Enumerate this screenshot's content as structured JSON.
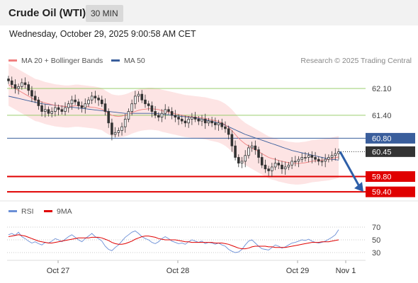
{
  "header": {
    "title": "Crude Oil (WTI)",
    "timeframe": "30 MIN",
    "datetime": "Wednesday, October 29, 2025 9:00:58 AM CET"
  },
  "legend": {
    "bollinger_label": "MA 20 + Bollinger Bands",
    "ma50_label": "MA 50",
    "credit": "Research © 2025 Trading Central"
  },
  "rsi_legend": {
    "rsi_label": "RSI",
    "ma_label": "9MA"
  },
  "colors": {
    "bollinger": "#f08080",
    "band_fill": "#fde4e4",
    "ma50": "#3a5e9c",
    "candle": "#333333",
    "green_level": "#8cc85a",
    "blue_level": "#3a5e9c",
    "red_level": "#e00000",
    "current": "#333333",
    "arrow": "#2e5fa8",
    "rsi": "#6b8fd6",
    "rsi_ma": "#e00000"
  },
  "chart_data": {
    "type": "candlestick",
    "x_ticks": [
      "Oct 27",
      "Oct 28",
      "Oct 29",
      "Nov 1"
    ],
    "y_range": [
      59.2,
      62.6
    ],
    "levels": [
      {
        "value": 62.1,
        "label": "62.10",
        "kind": "resistance"
      },
      {
        "value": 61.4,
        "label": "61.40",
        "kind": "resistance"
      },
      {
        "value": 60.8,
        "label": "60.80",
        "kind": "pivot"
      },
      {
        "value": 59.8,
        "label": "59.80",
        "kind": "support"
      },
      {
        "value": 59.4,
        "label": "59.40",
        "kind": "support"
      }
    ],
    "current_price": {
      "value": 60.45,
      "label": "60.45"
    },
    "forecast_target": 59.4,
    "close": [
      62.3,
      62.2,
      62.1,
      62.15,
      62.25,
      62.2,
      62.05,
      61.9,
      61.8,
      61.65,
      61.5,
      61.55,
      61.45,
      61.5,
      61.6,
      61.55,
      61.5,
      61.6,
      61.7,
      61.8,
      61.75,
      61.65,
      61.6,
      61.7,
      61.8,
      61.9,
      61.85,
      61.8,
      61.7,
      61.5,
      61.2,
      60.9,
      60.95,
      61.0,
      61.1,
      61.3,
      61.5,
      61.7,
      61.9,
      61.95,
      61.8,
      61.7,
      61.65,
      61.5,
      61.4,
      61.35,
      61.45,
      61.55,
      61.5,
      61.4,
      61.35,
      61.3,
      61.25,
      61.2,
      61.3,
      61.35,
      61.3,
      61.25,
      61.3,
      61.2,
      61.25,
      61.2,
      61.15,
      61.2,
      61.1,
      61.05,
      60.9,
      60.6,
      60.3,
      60.15,
      60.2,
      60.35,
      60.55,
      60.6,
      60.5,
      60.3,
      60.1,
      60.0,
      59.95,
      60.05,
      60.15,
      60.1,
      60.0,
      60.05,
      60.1,
      60.2,
      60.2,
      60.25,
      60.3,
      60.3,
      60.35,
      60.3,
      60.25,
      60.2,
      60.2,
      60.25,
      60.3,
      60.35,
      60.4,
      60.45
    ],
    "ma20": [
      62.2,
      62.15,
      62.1,
      62.05,
      62.0,
      61.95,
      61.9,
      61.85,
      61.8,
      61.78,
      61.75,
      61.72,
      61.7,
      61.68,
      61.66,
      61.65,
      61.64,
      61.63,
      61.63,
      61.64,
      61.65,
      61.65,
      61.64,
      61.63,
      61.62,
      61.61,
      61.6,
      61.58,
      61.56,
      61.5,
      61.45,
      61.4,
      61.38,
      61.37,
      61.38,
      61.4,
      61.43,
      61.47,
      61.5,
      61.53,
      61.55,
      61.56,
      61.57,
      61.57,
      61.56,
      61.55,
      61.52,
      61.5,
      61.48,
      61.46,
      61.44,
      61.42,
      61.4,
      61.38,
      61.37,
      61.36,
      61.35,
      61.34,
      61.33,
      61.32,
      61.3,
      61.28,
      61.26,
      61.24,
      61.2,
      61.15,
      61.08,
      61.0,
      60.9,
      60.8,
      60.72,
      60.65,
      60.6,
      60.55,
      60.5,
      60.45,
      60.4,
      60.35,
      60.3,
      60.27,
      60.25,
      60.22,
      60.2,
      60.18,
      60.16,
      60.15,
      60.14,
      60.14,
      60.15,
      60.16,
      60.18,
      60.2,
      60.21,
      60.22,
      60.23,
      60.24,
      60.25,
      60.27,
      60.29,
      60.31
    ],
    "ma50": [
      61.9,
      61.88,
      61.86,
      61.84,
      61.82,
      61.8,
      61.78,
      61.76,
      61.74,
      61.72,
      61.7,
      61.69,
      61.68,
      61.67,
      61.66,
      61.65,
      61.64,
      61.63,
      61.62,
      61.61,
      61.6,
      61.59,
      61.58,
      61.57,
      61.56,
      61.55,
      61.54,
      61.53,
      61.52,
      61.51,
      61.5,
      61.49,
      61.48,
      61.47,
      61.46,
      61.45,
      61.45,
      61.45,
      61.45,
      61.45,
      61.45,
      61.45,
      61.45,
      61.45,
      61.45,
      61.44,
      61.43,
      61.42,
      61.41,
      61.4,
      61.39,
      61.38,
      61.37,
      61.36,
      61.35,
      61.34,
      61.33,
      61.32,
      61.3,
      61.28,
      61.26,
      61.24,
      61.22,
      61.2,
      61.17,
      61.14,
      61.1,
      61.06,
      61.02,
      60.98,
      60.94,
      60.9,
      60.87,
      60.84,
      60.81,
      60.78,
      60.75,
      60.72,
      60.69,
      60.66,
      60.63,
      60.6,
      60.57,
      60.54,
      60.51,
      60.48,
      60.46,
      60.44,
      60.42,
      60.4,
      60.38,
      60.36,
      60.34,
      60.32,
      60.3,
      60.28,
      60.26,
      60.25,
      60.24,
      60.23
    ],
    "band_width": 0.55,
    "rsi": {
      "levels": [
        {
          "value": 70,
          "label": "70"
        },
        {
          "value": 50,
          "label": "50"
        },
        {
          "value": 30,
          "label": "30"
        }
      ],
      "y_range": [
        20,
        80
      ],
      "values": [
        58,
        60,
        57,
        62,
        55,
        52,
        48,
        45,
        47,
        44,
        42,
        46,
        45,
        48,
        52,
        50,
        47,
        51,
        55,
        58,
        54,
        50,
        47,
        52,
        56,
        60,
        55,
        52,
        48,
        40,
        35,
        33,
        38,
        42,
        48,
        54,
        58,
        62,
        64,
        60,
        55,
        52,
        50,
        46,
        44,
        47,
        52,
        55,
        52,
        48,
        46,
        44,
        45,
        43,
        47,
        50,
        48,
        46,
        48,
        44,
        46,
        45,
        43,
        45,
        42,
        40,
        35,
        32,
        30,
        31,
        35,
        42,
        48,
        50,
        45,
        40,
        36,
        35,
        34,
        38,
        42,
        40,
        37,
        39,
        42,
        45,
        46,
        48,
        50,
        49,
        51,
        48,
        46,
        45,
        46,
        48,
        51,
        54,
        58,
        66
      ],
      "ma": [
        55,
        56,
        57,
        58,
        57,
        56,
        54,
        52,
        50,
        48,
        47,
        46,
        45,
        45,
        46,
        47,
        48,
        49,
        50,
        51,
        52,
        53,
        53,
        53,
        53,
        54,
        54,
        54,
        53,
        51,
        49,
        46,
        44,
        43,
        43,
        44,
        46,
        48,
        51,
        53,
        55,
        56,
        56,
        55,
        54,
        52,
        51,
        50,
        50,
        50,
        50,
        49,
        48,
        47,
        47,
        46,
        46,
        46,
        46,
        46,
        46,
        46,
        45,
        45,
        45,
        44,
        43,
        41,
        39,
        37,
        36,
        36,
        37,
        39,
        40,
        40,
        40,
        40,
        39,
        39,
        38,
        38,
        38,
        38,
        39,
        40,
        41,
        42,
        43,
        44,
        45,
        46,
        46,
        46,
        47,
        47,
        47,
        48,
        49,
        50
      ]
    }
  }
}
